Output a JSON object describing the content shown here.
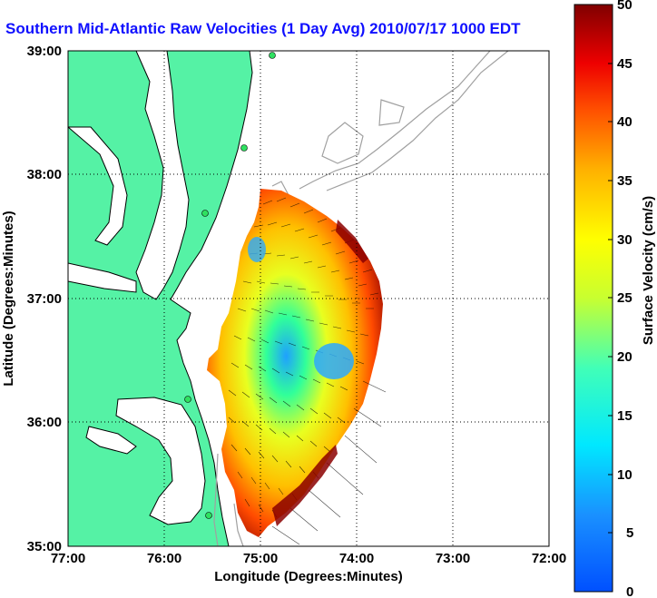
{
  "title": "Southern Mid-Atlantic Raw Velocities (1 Day Avg) 2010/07/17 1000 EDT",
  "map": {
    "xlabel": "Longitude (Degrees:Minutes)",
    "ylabel": "Latitude (Degrees:Minutes)",
    "x_ticks": [
      "77:00",
      "76:00",
      "75:00",
      "74:00",
      "73:00",
      "72:00"
    ],
    "y_ticks": [
      "39:00",
      "38:00",
      "37:00",
      "36:00",
      "35:00"
    ],
    "lon_range": [
      -77,
      -72
    ],
    "lat_range": [
      35,
      39
    ],
    "land_color": "#55f2a5",
    "coast_color": "#000000",
    "bathymetry_color": "#a0a0a0",
    "grid": "dotted",
    "stations": [
      "green-dot",
      "green-dot",
      "green-dot",
      "green-dot",
      "green-dot"
    ]
  },
  "colorbar": {
    "label": "Surface Velocity (cm/s)",
    "ticks": [
      "50",
      "45",
      "40",
      "35",
      "30",
      "25",
      "20",
      "15",
      "10",
      "5",
      "0"
    ],
    "range": [
      0,
      50
    ],
    "colormap": "jet"
  }
}
